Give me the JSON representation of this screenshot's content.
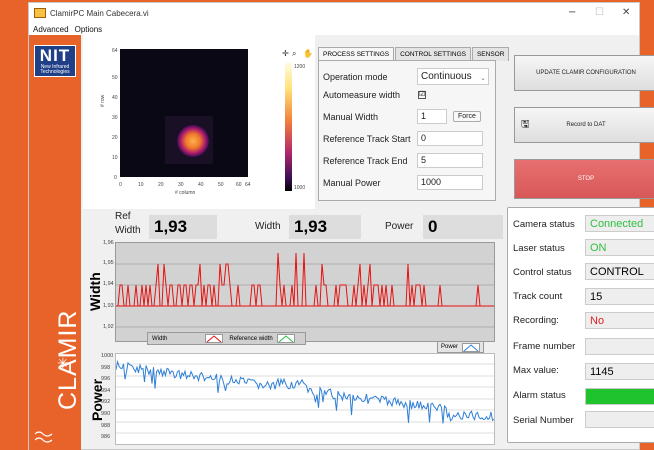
{
  "window": {
    "title": "ClamirPC Main Cabecera.vi",
    "minimize": "−",
    "maximize": "☐",
    "close": "✕"
  },
  "menu": [
    "Advanced",
    "Options"
  ],
  "brand": {
    "nit_big": "NIT",
    "nit_line1": "New Infrared",
    "nit_line2": "Technologies",
    "clamir": "CLAMIR"
  },
  "thermal": {
    "xlabel": "# column",
    "ylabel": "# row",
    "xticks": [
      "0",
      "10",
      "20",
      "30",
      "40",
      "50",
      "60",
      "64"
    ],
    "yticks": [
      "64",
      "50",
      "40",
      "30",
      "20",
      "10",
      "0"
    ],
    "colorbar_ticks": [
      "1200",
      "1000"
    ]
  },
  "tabs": [
    "PROCESS SETTINGS",
    "CONTROL SETTINGS",
    "SENSOR"
  ],
  "process": {
    "operation_mode_label": "Operation mode",
    "operation_mode_value": "Continuous",
    "automeasure_label": "Automeasure width",
    "automeasure_check": "☑",
    "manual_width_label": "Manual Width",
    "manual_width_value": "1",
    "force_label": "Force",
    "ref_start_label": "Reference Track Start",
    "ref_start_value": "0",
    "ref_end_label": "Reference Track End",
    "ref_end_value": "5",
    "manual_power_label": "Manual Power",
    "manual_power_value": "1000"
  },
  "buttons": {
    "update": "UPDATE CLAMIR CONFIGURATION",
    "record": "Record to DAT",
    "stop": "STOP"
  },
  "readouts": {
    "ref_width_label1": "Ref",
    "ref_width_label2": "Width",
    "ref_width_value": "1,93",
    "width_label": "Width",
    "width_value": "1,93",
    "power_label": "Power",
    "power_value": "0"
  },
  "width_chart": {
    "ylabel": "Width",
    "yticks": [
      "1,96",
      "1,95",
      "1,94",
      "1,93",
      "1,92"
    ],
    "legend_width": "Width",
    "legend_ref": "Reference width",
    "colors": {
      "width": "#e81010",
      "reference": "#26c040"
    }
  },
  "power_chart": {
    "ylabel": "Power",
    "yticks": [
      "1000",
      "998",
      "996",
      "994",
      "992",
      "990",
      "988",
      "986"
    ],
    "legend": "Power",
    "color": "#2f7fd6"
  },
  "status": {
    "camera_label": "Camera status",
    "camera_value": "Connected",
    "laser_label": "Laser status",
    "laser_value": "ON",
    "control_label": "Control status",
    "control_value": "CONTROL",
    "track_label": "Track count",
    "track_value": "15",
    "recording_label": "Recording:",
    "recording_value": "No",
    "frame_label": "Frame number",
    "frame_value": "",
    "max_label": "Max value:",
    "max_value": "1145",
    "alarm_label": "Alarm status",
    "alarm_color": "#1ec32e",
    "serial_label": "Serial Number",
    "serial_value": ""
  }
}
